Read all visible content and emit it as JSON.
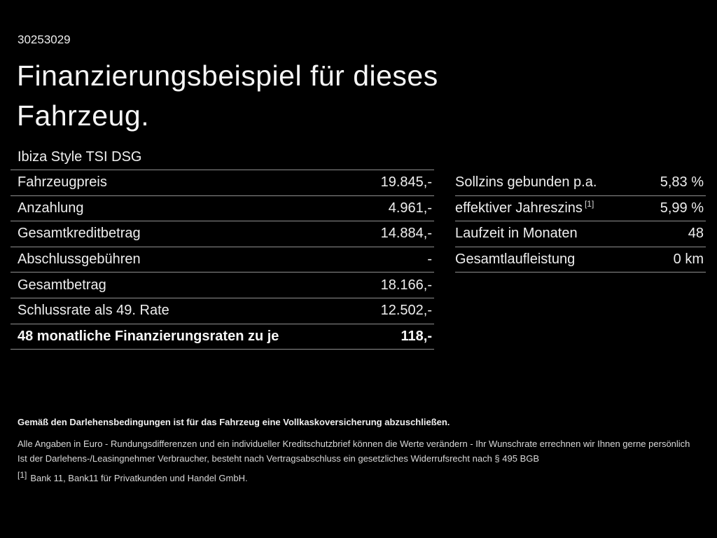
{
  "doc_number": "30253029",
  "title": "Finanzierungsbeispiel für dieses Fahrzeug.",
  "vehicle_model": "Ibiza Style TSI DSG",
  "finance_table": {
    "rows": [
      {
        "label": "Fahrzeugpreis",
        "value": "19.845,-"
      },
      {
        "label": "Anzahlung",
        "value": "4.961,-"
      },
      {
        "label": "Gesamtkreditbetrag",
        "value": "14.884,-"
      },
      {
        "label": "Abschlussgebühren",
        "value": "-"
      },
      {
        "label": "Gesamtbetrag",
        "value": "18.166,-"
      },
      {
        "label": "Schlussrate als 49. Rate",
        "value": "12.502,-"
      },
      {
        "label": "48 monatliche Finanzierungsraten zu je",
        "value": "118,-"
      }
    ]
  },
  "conditions_table": {
    "rows": [
      {
        "label": "Sollzins gebunden p.a.",
        "sup": "",
        "value": "5,83 %"
      },
      {
        "label": "effektiver Jahreszins",
        "sup": "[1]",
        "value": "5,99 %"
      },
      {
        "label": "Laufzeit in Monaten",
        "sup": "",
        "value": "48"
      },
      {
        "label": "Gesamtlaufleistung",
        "sup": "",
        "value": "0 km"
      }
    ]
  },
  "footer": {
    "insurance_note": "Gemäß den Darlehensbedingungen ist für das Fahrzeug eine Vollkaskoversicherung abzuschließen.",
    "disclaimer_line1": "Alle Angaben in Euro - Rundungsdifferenzen und ein individueller Kreditschutzbrief können die Werte verändern - Ihr Wunschrate errechnen wir Ihnen gerne persönlich",
    "disclaimer_line2": "Ist der Darlehens-/Leasingnehmer Verbraucher, besteht nach Vertragsabschluss ein gesetzliches Widerrufsrecht nach § 495 BGB",
    "footnote_marker": "[1]",
    "footnote_text": "Bank 11, Bank11 für Privatkunden und Handel GmbH."
  },
  "colors": {
    "background": "#000000",
    "text": "#f2f2f2",
    "divider": "#909090",
    "footer_text": "#d9d9d9"
  }
}
